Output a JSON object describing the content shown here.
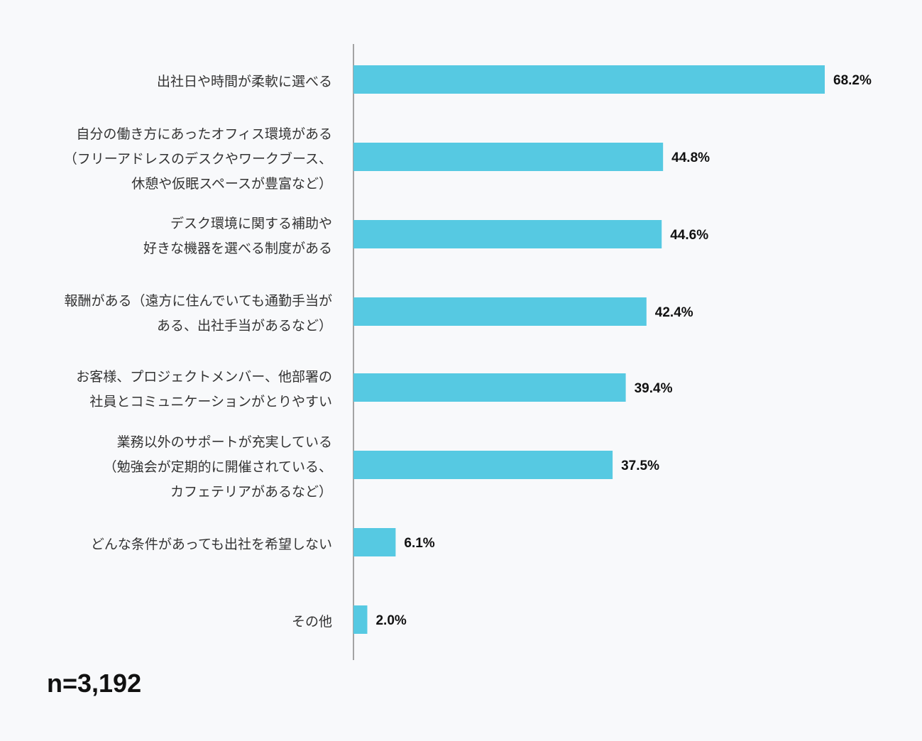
{
  "chart_data": {
    "type": "bar",
    "orientation": "horizontal",
    "categories": [
      [
        "出社日や時間が柔軟に選べる"
      ],
      [
        "自分の働き方にあったオフィス環境がある",
        "（フリーアドレスのデスクやワークブース、",
        "休憩や仮眠スペースが豊富など）"
      ],
      [
        "デスク環境に関する補助や",
        "好きな機器を選べる制度がある"
      ],
      [
        "報酬がある（遠方に住んでいても通勤手当が",
        "ある、出社手当があるなど）"
      ],
      [
        "お客様、プロジェクトメンバー、他部署の",
        "社員とコミュニケーションがとりやすい"
      ],
      [
        "業務以外のサポートが充実している",
        "（勉強会が定期的に開催されている、",
        "カフェテリアがあるなど）"
      ],
      [
        "どんな条件があっても出社を希望しない"
      ],
      [
        "その他"
      ]
    ],
    "values": [
      68.2,
      44.8,
      44.6,
      42.4,
      39.4,
      37.5,
      6.1,
      2.0
    ],
    "value_labels": [
      "68.2%",
      "44.8%",
      "44.6%",
      "42.4%",
      "39.4%",
      "37.5%",
      "6.1%",
      "2.0%"
    ],
    "xlim": [
      0,
      68.2
    ],
    "grid": false,
    "bar_color": "#56c9e2",
    "axis_color": "#888888"
  },
  "footnote": "n=3,192"
}
